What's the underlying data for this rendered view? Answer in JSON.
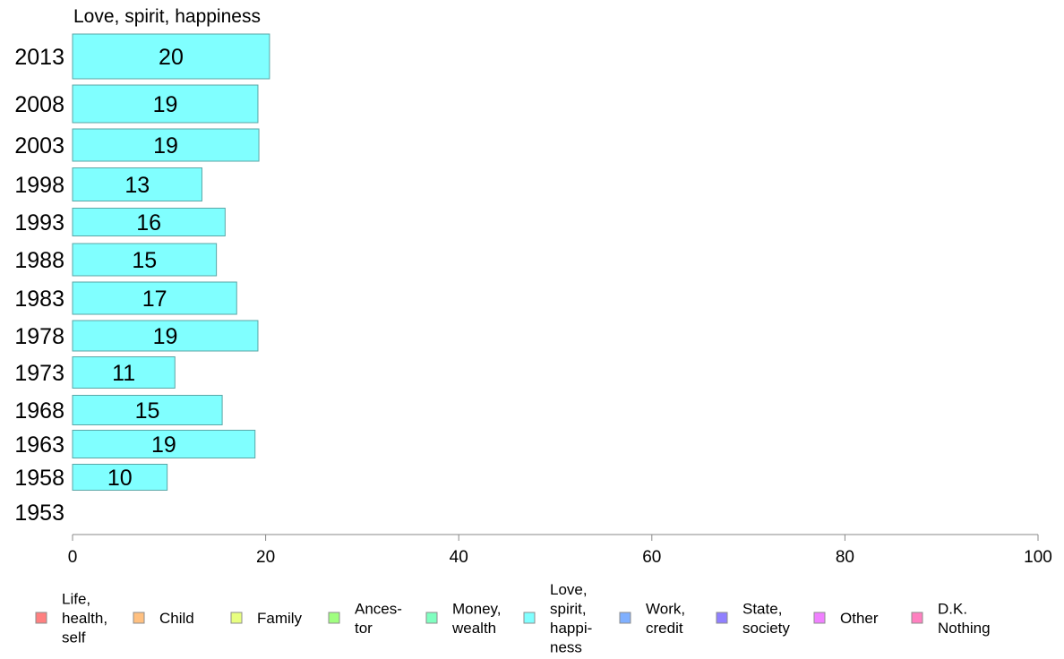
{
  "chart_data": {
    "type": "bar",
    "orientation": "horizontal",
    "title": "Love, spirit, happiness",
    "categories": [
      "2013",
      "2008",
      "2003",
      "1998",
      "1993",
      "1988",
      "1983",
      "1978",
      "1973",
      "1968",
      "1963",
      "1958",
      "1953"
    ],
    "values": [
      20.4,
      19.2,
      19.3,
      13.4,
      15.8,
      14.9,
      17.0,
      19.2,
      10.6,
      15.5,
      18.9,
      9.8,
      null
    ],
    "value_labels": [
      "20",
      "19",
      "19",
      "13",
      "16",
      "15",
      "17",
      "19",
      "11",
      "15",
      "19",
      "10",
      ""
    ],
    "xlim": [
      0,
      100
    ],
    "xticks": [
      0,
      20,
      40,
      60,
      80,
      100
    ],
    "grid": false,
    "bar_color": "#80ffff",
    "bar_stroke": "#5aa6a6",
    "axis_color": "#888888",
    "legend_position": "bottom",
    "legend": [
      {
        "lines": [
          "Life,",
          "health,",
          "self"
        ],
        "color": "#ff8080"
      },
      {
        "lines": [
          "Child"
        ],
        "color": "#ffc080"
      },
      {
        "lines": [
          "Family"
        ],
        "color": "#e8ff80"
      },
      {
        "lines": [
          "Ances-",
          "tor"
        ],
        "color": "#a0ff80"
      },
      {
        "lines": [
          "Money,",
          "wealth"
        ],
        "color": "#80ffc0"
      },
      {
        "lines": [
          "Love,",
          "spirit,",
          "happi-",
          "ness"
        ],
        "color": "#80ffff"
      },
      {
        "lines": [
          "Work,",
          "credit"
        ],
        "color": "#80b0ff"
      },
      {
        "lines": [
          "State,",
          "society"
        ],
        "color": "#9080ff"
      },
      {
        "lines": [
          "Other"
        ],
        "color": "#f080ff"
      },
      {
        "lines": [
          "D.K.",
          "Nothing"
        ],
        "color": "#ff80c0"
      }
    ]
  }
}
